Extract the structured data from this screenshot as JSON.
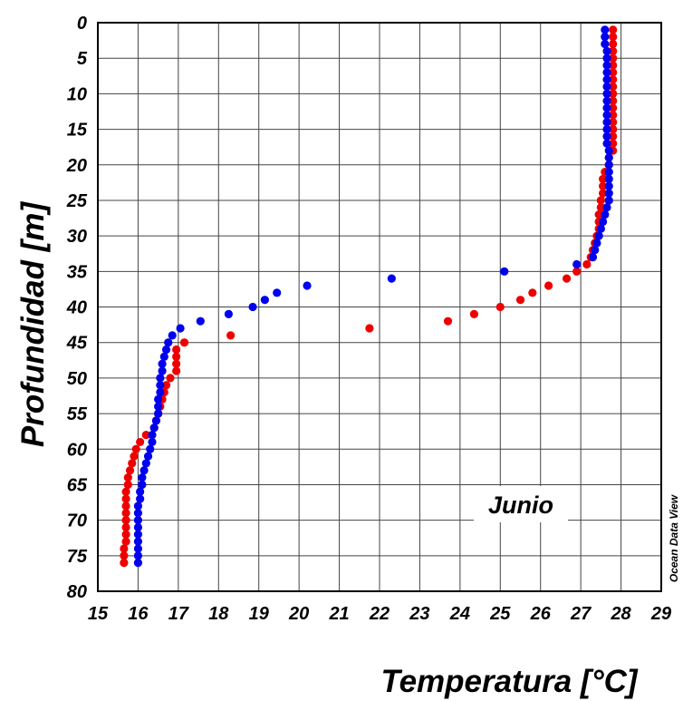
{
  "chart_data": {
    "type": "scatter",
    "xlabel": "Temperatura [°C]",
    "ylabel": "Profundidad [m]",
    "xlim": [
      15,
      29
    ],
    "ylim": [
      80,
      0
    ],
    "y_inverted": true,
    "grid": true,
    "annotation": "Junio",
    "credit": "Ocean Data View",
    "colors": {
      "series_red": "#ee0000",
      "series_blue": "#0000ee"
    },
    "x_ticks": [
      "15",
      "16",
      "17",
      "18",
      "19",
      "20",
      "21",
      "22",
      "23",
      "24",
      "25",
      "26",
      "27",
      "28",
      "29"
    ],
    "y_ticks": [
      "0",
      "5",
      "10",
      "15",
      "20",
      "25",
      "30",
      "35",
      "40",
      "45",
      "50",
      "55",
      "60",
      "65",
      "70",
      "75",
      "80"
    ],
    "series": [
      {
        "color": "#ee0000",
        "points": [
          [
            27.8,
            1
          ],
          [
            27.8,
            2
          ],
          [
            27.8,
            3
          ],
          [
            27.8,
            4
          ],
          [
            27.8,
            5
          ],
          [
            27.8,
            6
          ],
          [
            27.8,
            7
          ],
          [
            27.8,
            8
          ],
          [
            27.8,
            9
          ],
          [
            27.8,
            10
          ],
          [
            27.8,
            11
          ],
          [
            27.8,
            12
          ],
          [
            27.8,
            13
          ],
          [
            27.8,
            14
          ],
          [
            27.8,
            15
          ],
          [
            27.8,
            16
          ],
          [
            27.8,
            17
          ],
          [
            27.8,
            18
          ],
          [
            27.7,
            19
          ],
          [
            27.7,
            20
          ],
          [
            27.6,
            21
          ],
          [
            27.55,
            22
          ],
          [
            27.55,
            23
          ],
          [
            27.55,
            24
          ],
          [
            27.5,
            25
          ],
          [
            27.5,
            26
          ],
          [
            27.45,
            27
          ],
          [
            27.45,
            28
          ],
          [
            27.45,
            29
          ],
          [
            27.4,
            30
          ],
          [
            27.35,
            31
          ],
          [
            27.3,
            32
          ],
          [
            27.25,
            33
          ],
          [
            27.15,
            34
          ],
          [
            26.9,
            35
          ],
          [
            26.65,
            36
          ],
          [
            26.2,
            37
          ],
          [
            25.8,
            38
          ],
          [
            25.5,
            39
          ],
          [
            25.0,
            40
          ],
          [
            24.35,
            41
          ],
          [
            23.7,
            42
          ],
          [
            21.75,
            43
          ],
          [
            18.3,
            44
          ],
          [
            17.15,
            45
          ],
          [
            16.95,
            46
          ],
          [
            16.95,
            47
          ],
          [
            16.95,
            48
          ],
          [
            16.95,
            49
          ],
          [
            16.8,
            50
          ],
          [
            16.7,
            51
          ],
          [
            16.65,
            52
          ],
          [
            16.6,
            53
          ],
          [
            16.55,
            54
          ],
          [
            16.5,
            55
          ],
          [
            16.45,
            56
          ],
          [
            16.4,
            57
          ],
          [
            16.2,
            58
          ],
          [
            16.05,
            59
          ],
          [
            15.95,
            60
          ],
          [
            15.9,
            61
          ],
          [
            15.85,
            62
          ],
          [
            15.8,
            63
          ],
          [
            15.75,
            64
          ],
          [
            15.75,
            65
          ],
          [
            15.7,
            66
          ],
          [
            15.7,
            67
          ],
          [
            15.7,
            68
          ],
          [
            15.7,
            69
          ],
          [
            15.7,
            70
          ],
          [
            15.7,
            71
          ],
          [
            15.7,
            72
          ],
          [
            15.7,
            73
          ],
          [
            15.65,
            74
          ],
          [
            15.65,
            75
          ],
          [
            15.65,
            76
          ]
        ]
      },
      {
        "color": "#0000ee",
        "points": [
          [
            27.6,
            1
          ],
          [
            27.6,
            2
          ],
          [
            27.6,
            3
          ],
          [
            27.65,
            4
          ],
          [
            27.65,
            5
          ],
          [
            27.65,
            6
          ],
          [
            27.65,
            7
          ],
          [
            27.65,
            8
          ],
          [
            27.65,
            9
          ],
          [
            27.65,
            10
          ],
          [
            27.65,
            11
          ],
          [
            27.65,
            12
          ],
          [
            27.65,
            13
          ],
          [
            27.65,
            14
          ],
          [
            27.65,
            15
          ],
          [
            27.65,
            16
          ],
          [
            27.65,
            17
          ],
          [
            27.7,
            18
          ],
          [
            27.7,
            19
          ],
          [
            27.7,
            20
          ],
          [
            27.7,
            21
          ],
          [
            27.7,
            22
          ],
          [
            27.7,
            23
          ],
          [
            27.7,
            24
          ],
          [
            27.7,
            25
          ],
          [
            27.65,
            26
          ],
          [
            27.6,
            27
          ],
          [
            27.55,
            28
          ],
          [
            27.5,
            29
          ],
          [
            27.45,
            30
          ],
          [
            27.4,
            31
          ],
          [
            27.35,
            32
          ],
          [
            27.3,
            33
          ],
          [
            26.9,
            34
          ],
          [
            25.1,
            35
          ],
          [
            22.3,
            36
          ],
          [
            20.2,
            37
          ],
          [
            19.45,
            38
          ],
          [
            19.15,
            39
          ],
          [
            18.85,
            40
          ],
          [
            18.25,
            41
          ],
          [
            17.55,
            42
          ],
          [
            17.05,
            43
          ],
          [
            16.85,
            44
          ],
          [
            16.75,
            45
          ],
          [
            16.7,
            46
          ],
          [
            16.65,
            47
          ],
          [
            16.6,
            48
          ],
          [
            16.6,
            49
          ],
          [
            16.55,
            50
          ],
          [
            16.55,
            51
          ],
          [
            16.55,
            52
          ],
          [
            16.5,
            53
          ],
          [
            16.5,
            54
          ],
          [
            16.5,
            55
          ],
          [
            16.45,
            56
          ],
          [
            16.4,
            57
          ],
          [
            16.35,
            58
          ],
          [
            16.35,
            59
          ],
          [
            16.3,
            60
          ],
          [
            16.25,
            61
          ],
          [
            16.2,
            62
          ],
          [
            16.15,
            63
          ],
          [
            16.1,
            64
          ],
          [
            16.1,
            65
          ],
          [
            16.05,
            66
          ],
          [
            16.05,
            67
          ],
          [
            16.0,
            68
          ],
          [
            16.0,
            69
          ],
          [
            16.0,
            70
          ],
          [
            16.0,
            71
          ],
          [
            16.0,
            72
          ],
          [
            16.0,
            73
          ],
          [
            16.0,
            74
          ],
          [
            16.0,
            75
          ],
          [
            16.0,
            76
          ]
        ]
      }
    ]
  }
}
